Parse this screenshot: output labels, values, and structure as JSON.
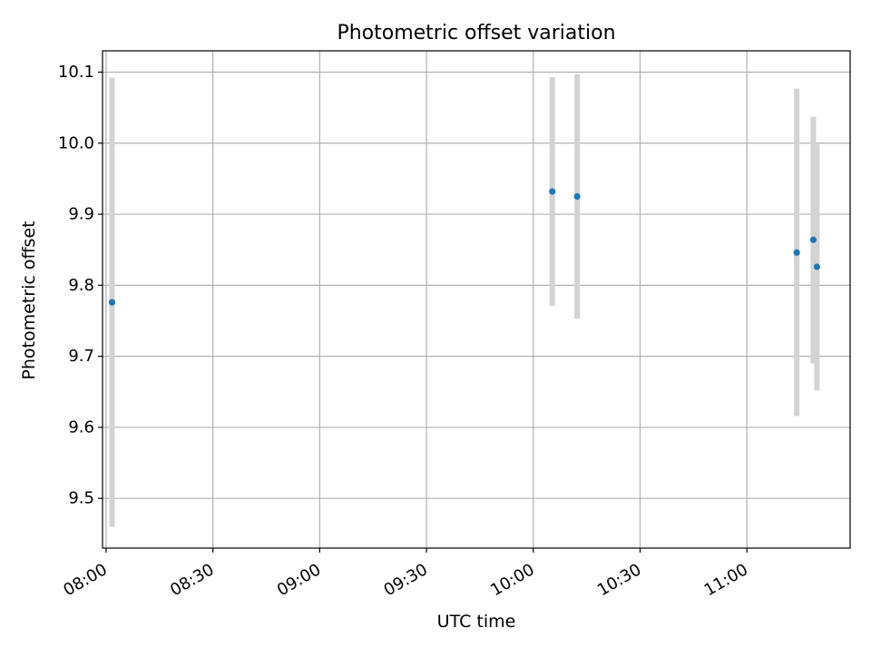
{
  "chart_data": {
    "type": "scatter",
    "title": "Photometric offset variation",
    "xlabel": "UTC time",
    "ylabel": "Photometric offset",
    "x_axis_kind": "time",
    "xlim": [
      "07:59:00",
      "11:29:00"
    ],
    "ylim": [
      9.43,
      10.13
    ],
    "x_ticks": [
      "08:00",
      "08:30",
      "09:00",
      "09:30",
      "10:00",
      "10:30",
      "11:00"
    ],
    "y_ticks": [
      "9.5",
      "9.6",
      "9.7",
      "9.8",
      "9.9",
      "10.0",
      "10.1"
    ],
    "grid": true,
    "legend": "none",
    "series": [
      {
        "points": [
          {
            "x": "08:01:40",
            "y": 9.776,
            "ymin": 9.46,
            "ymax": 10.092
          },
          {
            "x": "10:05:20",
            "y": 9.932,
            "ymin": 9.771,
            "ymax": 10.093
          },
          {
            "x": "10:12:20",
            "y": 9.925,
            "ymin": 9.753,
            "ymax": 10.097
          },
          {
            "x": "11:14:00",
            "y": 9.846,
            "ymin": 9.616,
            "ymax": 10.077
          },
          {
            "x": "11:18:40",
            "y": 9.864,
            "ymin": 9.69,
            "ymax": 10.037
          },
          {
            "x": "11:19:40",
            "y": 9.826,
            "ymin": 9.652,
            "ymax": 10.0
          }
        ]
      }
    ],
    "colors": {
      "marker": "#1f77b4",
      "errorbar": "#d3d3d3",
      "grid": "#b0b0b0",
      "axes": "#000000"
    }
  }
}
